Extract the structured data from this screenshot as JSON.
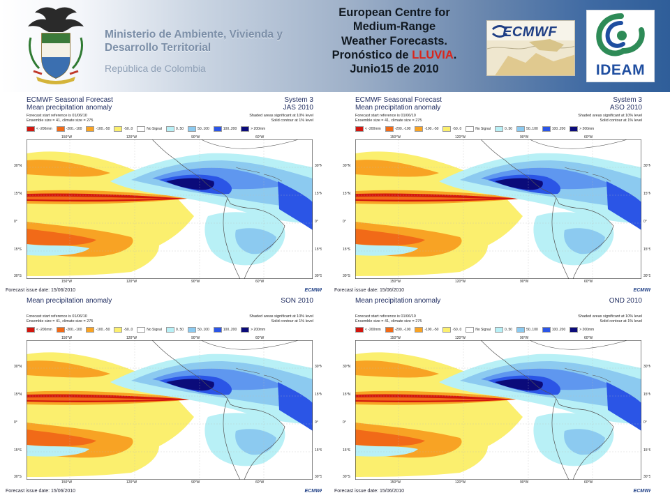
{
  "header": {
    "ministry_line1": "Ministerio de Ambiente, Vivienda y",
    "ministry_line2": "Desarrollo Territorial",
    "republic": "República de Colombia",
    "headline_lines": [
      "European Centre for",
      "Medium-Range",
      "Weather Forecasts."
    ],
    "headline_prefix": "Pronóstico de",
    "headline_highlight": "LLUVIA",
    "headline_suffix": ".",
    "headline_date": "Junio15 de 2010",
    "ecmwf_wordmark": "ECMWF",
    "ideam_wordmark": "IDEAM"
  },
  "colors": {
    "dark_blue": "#0b0b7a",
    "blue": "#2b55e6",
    "mid_blue": "#5f97ef",
    "light_blue": "#8ccaf0",
    "cyan": "#b8f0f6",
    "white": "#ffffff",
    "yellow": "#fbef6e",
    "orange": "#f8a324",
    "dark_orange": "#f16a18",
    "red": "#d2160e",
    "highlight_red": "#d9261c"
  },
  "legend": [
    {
      "label": "< -200mm",
      "color": "#d2160e"
    },
    {
      "label": "-200..-100",
      "color": "#f16a18"
    },
    {
      "label": "-100..-50",
      "color": "#f8a324"
    },
    {
      "label": "-50..0",
      "color": "#fbef6e"
    },
    {
      "label": "No Signal",
      "color": "#ffffff"
    },
    {
      "label": "0..50",
      "color": "#b8f0f6"
    },
    {
      "label": "50..100",
      "color": "#8ccaf0"
    },
    {
      "label": "100..200",
      "color": "#2b55e6"
    },
    {
      "label": "> 200mm",
      "color": "#0b0b7a"
    }
  ],
  "panels": [
    {
      "title1": "ECMWF Seasonal Forecast",
      "title2": "Mean precipitation anomaly",
      "system": "System 3",
      "season": "JAS 2010",
      "start": "Forecast start reference is 01/06/10",
      "ensemble": "Ensemble size = 41, climate size = 275",
      "note1": "Shaded areas significant at 10% level",
      "note2": "Solid contour at 1% level",
      "issue": "Forecast issue date: 15/06/2010",
      "mark": "ECMWF"
    },
    {
      "title1": "ECMWF Seasonal Forecast",
      "title2": "Mean precipitation anomaly",
      "system": "System 3",
      "season": "ASO 2010",
      "start": "Forecast start reference is 01/06/10",
      "ensemble": "Ensemble size = 41, climate size = 275",
      "note1": "Shaded areas significant at 10% level",
      "note2": "Solid contour at 1% level",
      "issue": "Forecast issue date: 15/06/2010",
      "mark": "ECMWF"
    },
    {
      "title1": "",
      "title2": "Mean precipitation anomaly",
      "system": "",
      "season": "SON 2010",
      "start": "Forecast start reference is 01/06/10",
      "ensemble": "Ensemble size = 41, climate size = 275",
      "note1": "Shaded areas significant at 10% level",
      "note2": "Solid contour at 1% level",
      "issue": "Forecast issue date: 15/06/2010",
      "mark": "ECMWF"
    },
    {
      "title1": "",
      "title2": "Mean precipitation anomaly",
      "system": "",
      "season": "OND 2010",
      "start": "Forecast start reference is 01/06/10",
      "ensemble": "Ensemble size = 41, climate size = 275",
      "note1": "Shaded areas significant at 10% level",
      "note2": "Solid contour at 1% level",
      "issue": "Forecast issue date: 15/06/2010",
      "mark": "ECMWF"
    }
  ],
  "axes": {
    "lon_labels": [
      "150°W",
      "120°W",
      "90°W",
      "60°W"
    ],
    "lat_labels": [
      "30°N",
      "15°N",
      "0°",
      "15°S",
      "30°S"
    ]
  }
}
